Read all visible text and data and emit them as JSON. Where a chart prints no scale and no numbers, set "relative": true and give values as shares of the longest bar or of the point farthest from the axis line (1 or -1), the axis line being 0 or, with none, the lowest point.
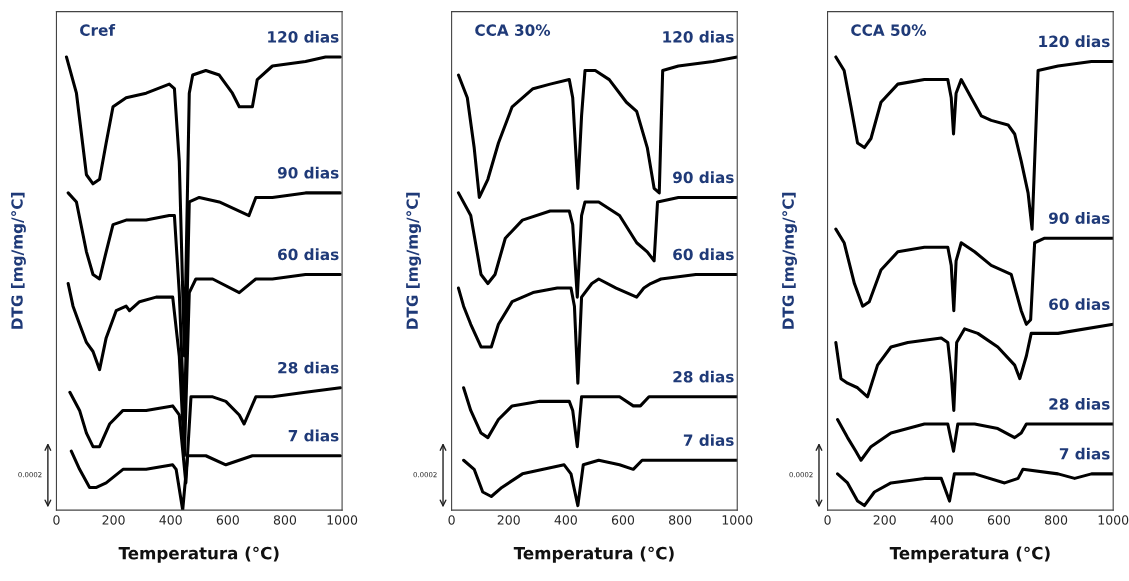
{
  "chart_data": [
    {
      "type": "line",
      "relative": true,
      "xlabel": "Temperatura (°C)",
      "ylabel": "DTG [mg/mg/°C]",
      "annotations": [
        "Cref",
        "0.0002"
      ],
      "xlim": [
        0,
        1000
      ],
      "xticks": [
        0,
        200,
        400,
        600,
        800,
        1000
      ],
      "grid": false,
      "legend": false,
      "marker": "none",
      "line_style": "solid",
      "tick_labels": "x",
      "series": [
        {
          "name": "120 dias",
          "color": "#000000",
          "x": [
            35,
            70,
            105,
            128,
            151,
            174,
            198,
            244,
            314,
            395,
            413,
            430,
            448,
            465,
            477,
            523,
            570,
            616,
            640,
            686,
            703,
            756,
            872,
            942,
            994
          ],
          "values": [
            1.0,
            0.92,
            0.74,
            0.72,
            0.73,
            0.81,
            0.89,
            0.91,
            0.92,
            0.94,
            0.93,
            0.77,
            0.34,
            0.92,
            0.96,
            0.97,
            0.96,
            0.92,
            0.89,
            0.89,
            0.95,
            0.98,
            0.99,
            1.0,
            1.0
          ]
        },
        {
          "name": "90 dias",
          "color": "#000000",
          "x": [
            41,
            70,
            105,
            128,
            151,
            174,
            198,
            244,
            314,
            395,
            413,
            430,
            448,
            465,
            500,
            570,
            640,
            674,
            698,
            756,
            872,
            994
          ],
          "values": [
            0.7,
            0.68,
            0.57,
            0.52,
            0.51,
            0.57,
            0.63,
            0.64,
            0.64,
            0.65,
            0.65,
            0.48,
            0.19,
            0.68,
            0.69,
            0.68,
            0.66,
            0.65,
            0.69,
            0.69,
            0.7,
            0.7
          ]
        },
        {
          "name": "60 dias",
          "color": "#000000",
          "x": [
            41,
            58,
            81,
            105,
            128,
            151,
            174,
            209,
            244,
            256,
            291,
            349,
            407,
            430,
            448,
            465,
            488,
            547,
            640,
            698,
            756,
            872,
            994
          ],
          "values": [
            0.5,
            0.45,
            0.41,
            0.37,
            0.35,
            0.31,
            0.38,
            0.44,
            0.45,
            0.44,
            0.46,
            0.47,
            0.47,
            0.34,
            0.12,
            0.48,
            0.51,
            0.51,
            0.48,
            0.51,
            0.51,
            0.52,
            0.52
          ]
        },
        {
          "name": "28 dias",
          "color": "#000000",
          "x": [
            47,
            81,
            105,
            128,
            151,
            186,
            233,
            314,
            407,
            430,
            453,
            471,
            547,
            593,
            640,
            657,
            698,
            756,
            872,
            994
          ],
          "values": [
            0.26,
            0.22,
            0.17,
            0.14,
            0.14,
            0.19,
            0.22,
            0.22,
            0.23,
            0.21,
            0.06,
            0.25,
            0.25,
            0.24,
            0.21,
            0.19,
            0.25,
            0.25,
            0.26,
            0.27
          ]
        },
        {
          "name": "7 dias",
          "color": "#000000",
          "x": [
            52,
            81,
            116,
            140,
            174,
            233,
            314,
            407,
            419,
            442,
            459,
            523,
            593,
            686,
            756,
            872,
            994
          ],
          "values": [
            0.13,
            0.09,
            0.05,
            0.05,
            0.06,
            0.09,
            0.09,
            0.1,
            0.09,
            0.0,
            0.12,
            0.12,
            0.1,
            0.12,
            0.12,
            0.12,
            0.12
          ]
        }
      ]
    },
    {
      "type": "line",
      "relative": true,
      "xlabel": "Temperatura (°C)",
      "ylabel": "DTG [mg/mg/°C]",
      "annotations": [
        "CCA 30%",
        "0.0002"
      ],
      "xlim": [
        0,
        1000
      ],
      "xticks": [
        0,
        200,
        400,
        600,
        800,
        1000
      ],
      "grid": false,
      "legend": false,
      "marker": "none",
      "line_style": "solid",
      "tick_labels": "x",
      "series": [
        {
          "name": "120 dias",
          "color": "#000000",
          "x": [
            24,
            55,
            79,
            97,
            127,
            164,
            212,
            285,
            345,
            412,
            424,
            442,
            455,
            467,
            503,
            552,
            612,
            648,
            685,
            709,
            727,
            739,
            794,
            915,
            1000
          ],
          "values": [
            0.96,
            0.91,
            0.8,
            0.69,
            0.73,
            0.81,
            0.89,
            0.93,
            0.94,
            0.95,
            0.91,
            0.71,
            0.87,
            0.97,
            0.97,
            0.95,
            0.9,
            0.88,
            0.8,
            0.71,
            0.7,
            0.97,
            0.98,
            0.99,
            1.0
          ]
        },
        {
          "name": "90 dias",
          "color": "#000000",
          "x": [
            24,
            67,
            103,
            127,
            152,
            188,
            248,
            345,
            412,
            424,
            440,
            455,
            467,
            515,
            588,
            648,
            685,
            709,
            721,
            794,
            915,
            1000
          ],
          "values": [
            0.7,
            0.65,
            0.52,
            0.5,
            0.52,
            0.6,
            0.64,
            0.66,
            0.66,
            0.63,
            0.47,
            0.65,
            0.68,
            0.68,
            0.65,
            0.59,
            0.57,
            0.55,
            0.68,
            0.69,
            0.69,
            0.69
          ]
        },
        {
          "name": "60 dias",
          "color": "#000000",
          "x": [
            24,
            42,
            67,
            103,
            139,
            164,
            212,
            285,
            370,
            418,
            430,
            442,
            455,
            491,
            515,
            576,
            648,
            673,
            697,
            733,
            855,
            1000
          ],
          "values": [
            0.49,
            0.45,
            0.41,
            0.36,
            0.36,
            0.41,
            0.46,
            0.48,
            0.49,
            0.49,
            0.45,
            0.28,
            0.47,
            0.5,
            0.51,
            0.49,
            0.47,
            0.49,
            0.5,
            0.51,
            0.52,
            0.52
          ]
        },
        {
          "name": "28 dias",
          "color": "#000000",
          "x": [
            42,
            67,
            103,
            127,
            164,
            212,
            309,
            412,
            424,
            440,
            455,
            515,
            588,
            636,
            661,
            691,
            794,
            915,
            1000
          ],
          "values": [
            0.27,
            0.22,
            0.17,
            0.16,
            0.2,
            0.23,
            0.24,
            0.24,
            0.22,
            0.14,
            0.25,
            0.25,
            0.25,
            0.23,
            0.23,
            0.25,
            0.25,
            0.25,
            0.25
          ]
        },
        {
          "name": "7 dias",
          "color": "#000000",
          "x": [
            42,
            79,
            109,
            139,
            176,
            248,
            394,
            418,
            442,
            461,
            515,
            588,
            636,
            667,
            794,
            1000
          ],
          "values": [
            0.11,
            0.09,
            0.04,
            0.03,
            0.05,
            0.08,
            0.1,
            0.08,
            0.01,
            0.1,
            0.11,
            0.1,
            0.09,
            0.11,
            0.11,
            0.11
          ]
        }
      ]
    },
    {
      "type": "line",
      "relative": true,
      "xlabel": "Temperatura (°C)",
      "ylabel": "DTG [mg/mg/°C]",
      "annotations": [
        "CCA 50%",
        "0.0002"
      ],
      "xlim": [
        0,
        1000
      ],
      "xticks": [
        0,
        200,
        400,
        600,
        800,
        1000
      ],
      "grid": false,
      "legend": false,
      "marker": "none",
      "line_style": "solid",
      "tick_labels": "x",
      "series": [
        {
          "name": "120 dias",
          "color": "#000000",
          "x": [
            29,
            58,
            82,
            105,
            129,
            152,
            187,
            246,
            339,
            421,
            433,
            441,
            450,
            468,
            503,
            538,
            573,
            632,
            655,
            678,
            702,
            716,
            725,
            737,
            807,
            924,
            1000
          ],
          "values": [
            1.0,
            0.97,
            0.89,
            0.81,
            0.8,
            0.82,
            0.9,
            0.94,
            0.95,
            0.95,
            0.91,
            0.83,
            0.92,
            0.95,
            0.91,
            0.87,
            0.86,
            0.85,
            0.83,
            0.77,
            0.7,
            0.62,
            0.77,
            0.97,
            0.98,
            0.99,
            0.99
          ]
        },
        {
          "name": "90 dias",
          "color": "#000000",
          "x": [
            29,
            58,
            94,
            123,
            146,
            187,
            246,
            339,
            421,
            433,
            442,
            450,
            468,
            515,
            573,
            643,
            678,
            696,
            711,
            725,
            760,
            865,
            1000
          ],
          "values": [
            0.62,
            0.59,
            0.5,
            0.45,
            0.46,
            0.53,
            0.57,
            0.58,
            0.58,
            0.54,
            0.44,
            0.55,
            0.59,
            0.57,
            0.54,
            0.52,
            0.44,
            0.41,
            0.42,
            0.59,
            0.6,
            0.6,
            0.6
          ]
        },
        {
          "name": "60 dias",
          "color": "#000000",
          "x": [
            29,
            47,
            70,
            105,
            140,
            175,
            222,
            281,
            398,
            421,
            433,
            442,
            452,
            480,
            526,
            596,
            655,
            673,
            696,
            713,
            807,
            1000
          ],
          "values": [
            0.37,
            0.29,
            0.28,
            0.27,
            0.25,
            0.32,
            0.36,
            0.37,
            0.38,
            0.37,
            0.3,
            0.22,
            0.37,
            0.4,
            0.39,
            0.36,
            0.32,
            0.29,
            0.34,
            0.39,
            0.39,
            0.41
          ]
        },
        {
          "name": "28 dias",
          "color": "#000000",
          "x": [
            35,
            70,
            99,
            117,
            152,
            222,
            339,
            421,
            441,
            456,
            515,
            596,
            655,
            678,
            696,
            807,
            1000
          ],
          "values": [
            0.2,
            0.16,
            0.13,
            0.11,
            0.14,
            0.17,
            0.19,
            0.19,
            0.13,
            0.19,
            0.19,
            0.18,
            0.16,
            0.17,
            0.19,
            0.19,
            0.19
          ]
        },
        {
          "name": "7 dias",
          "color": "#000000",
          "x": [
            35,
            70,
            105,
            129,
            164,
            222,
            339,
            398,
            427,
            444,
            515,
            620,
            667,
            684,
            807,
            865,
            924,
            1000
          ],
          "values": [
            0.08,
            0.06,
            0.02,
            0.01,
            0.04,
            0.06,
            0.07,
            0.07,
            0.02,
            0.08,
            0.08,
            0.06,
            0.07,
            0.09,
            0.08,
            0.07,
            0.08,
            0.08
          ]
        }
      ]
    }
  ]
}
